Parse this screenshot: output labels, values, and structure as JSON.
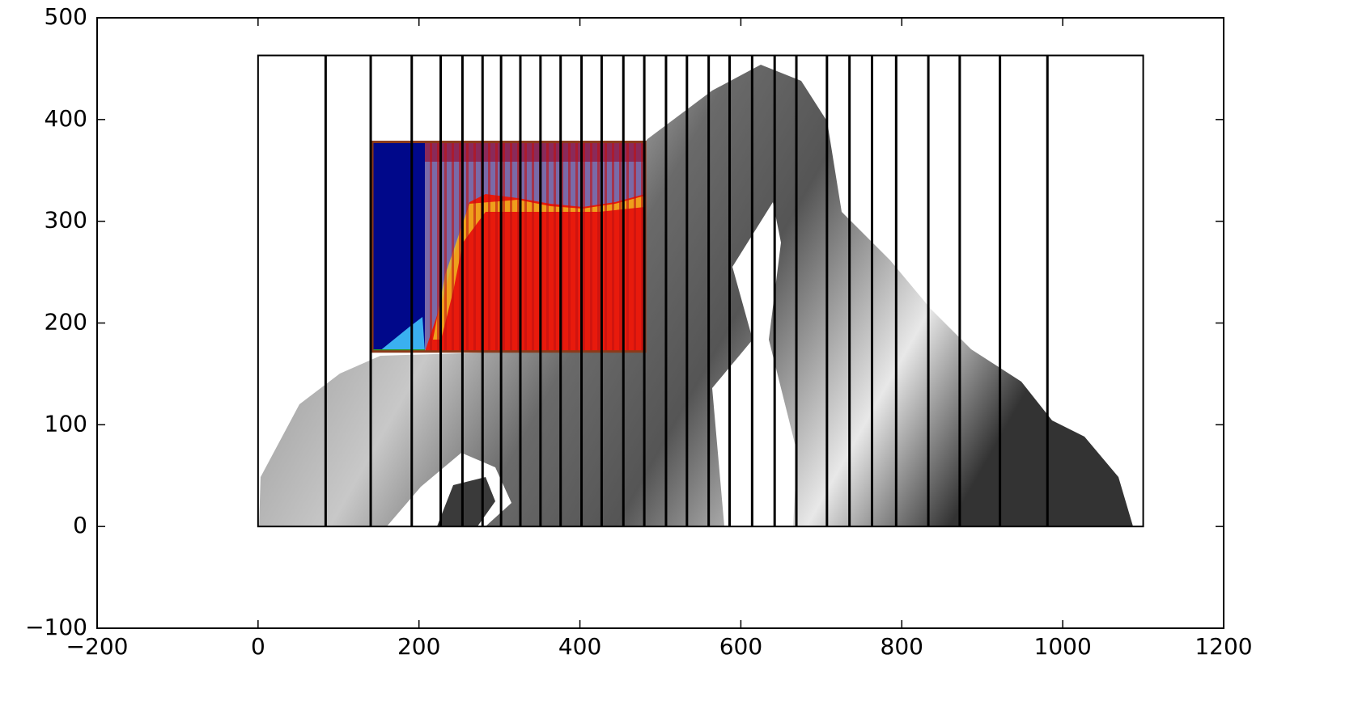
{
  "chart_data": {
    "type": "vlines",
    "x": [
      84,
      140,
      191,
      227,
      254,
      279,
      302,
      326,
      351,
      376,
      402,
      427,
      454,
      480,
      507,
      533,
      560,
      586,
      614,
      642,
      669,
      707,
      735,
      763,
      793,
      833,
      872,
      922,
      981
    ],
    "y_range": [
      0,
      463
    ],
    "color": "#000000",
    "boxes": [
      {
        "x": [
          0,
          1100
        ],
        "y": [
          0,
          463
        ],
        "color": "#000000"
      },
      {
        "x": [
          142,
          481
        ],
        "y": [
          172,
          378
        ],
        "color": "#8b3a1a"
      }
    ],
    "xlim": [
      -200,
      1200
    ],
    "ylim": [
      -100,
      500
    ],
    "xticks": [
      {
        "value": -200,
        "label": "−200"
      },
      0,
      200,
      400,
      600,
      800,
      1000,
      1200
    ],
    "yticks": [
      {
        "value": -100,
        "label": "−100"
      },
      0,
      100,
      200,
      300,
      400,
      500
    ]
  }
}
